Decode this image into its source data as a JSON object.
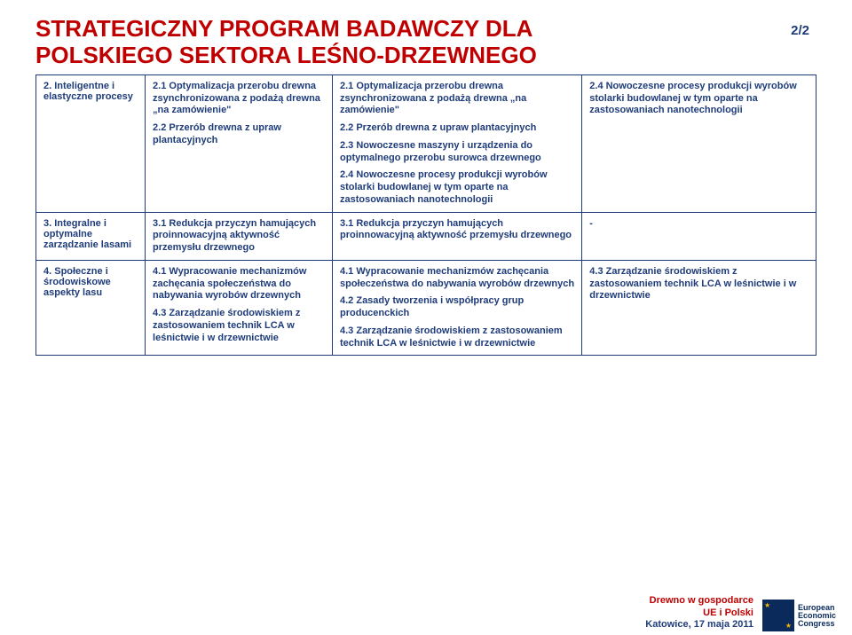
{
  "title_line1": "STRATEGICZNY PROGRAM BADAWCZY DLA",
  "title_line2": "POLSKIEGO SEKTORA LEŚNO-DRZEWNEGO",
  "page_indicator": "2/2",
  "colors": {
    "title": "#c00000",
    "body_text": "#1f3c7a",
    "border": "#1f3c7a",
    "logo_bg": "#0a2a5c",
    "logo_star": "#f2b705"
  },
  "rows": [
    {
      "col1": "2. Inteligentne i elastyczne procesy",
      "col2": [
        "2.1 Optymalizacja przerobu drewna zsynchronizowana z podażą drewna „na zamówienie\"",
        "2.2 Przerób drewna z upraw plantacyjnych"
      ],
      "col3": [
        "2.1 Optymalizacja przerobu drewna zsynchronizowana z podażą drewna „na zamówienie\"",
        "2.2 Przerób drewna z upraw plantacyjnych",
        "2.3 Nowoczesne maszyny i urządzenia do optymalnego przerobu surowca drzewnego",
        "2.4 Nowoczesne procesy produkcji wyrobów stolarki budowlanej w tym oparte na zastosowaniach nanotechnologii"
      ],
      "col4": [
        "2.4 Nowoczesne procesy produkcji wyrobów stolarki budowlanej w tym oparte na zastosowaniach nanotechnologii"
      ]
    },
    {
      "col1": "3. Integralne i optymalne zarządzanie lasami",
      "col2": [
        "3.1 Redukcja przyczyn hamujących proinnowacyjną aktywność przemysłu drzewnego"
      ],
      "col3": [
        "3.1 Redukcja przyczyn hamujących proinnowacyjną aktywność przemysłu drzewnego"
      ],
      "col4": [
        "-"
      ]
    },
    {
      "col1": "4. Społeczne i środowiskowe aspekty lasu",
      "col2": [
        "4.1 Wypracowanie mechanizmów zachęcania społeczeństwa do nabywania wyrobów drzewnych",
        "4.3 Zarządzanie środowiskiem z zastosowaniem technik LCA w leśnictwie i w drzewnictwie"
      ],
      "col3": [
        "4.1 Wypracowanie mechanizmów zachęcania społeczeństwa do nabywania wyrobów drzewnych",
        "4.2 Zasady tworzenia i współpracy grup producenckich",
        "4.3 Zarządzanie środowiskiem z zastosowaniem technik LCA w leśnictwie i w drzewnictwie"
      ],
      "col4": [
        "4.3 Zarządzanie środowiskiem z zastosowaniem technik LCA w leśnictwie i w drzewnictwie"
      ]
    }
  ],
  "footer": {
    "line1": "Drewno w gospodarce",
    "line2": "UE i Polski",
    "line3": "Katowice, 17 maja 2011",
    "logo_l1": "European",
    "logo_l2": "Economic",
    "logo_l3": "Congress"
  }
}
